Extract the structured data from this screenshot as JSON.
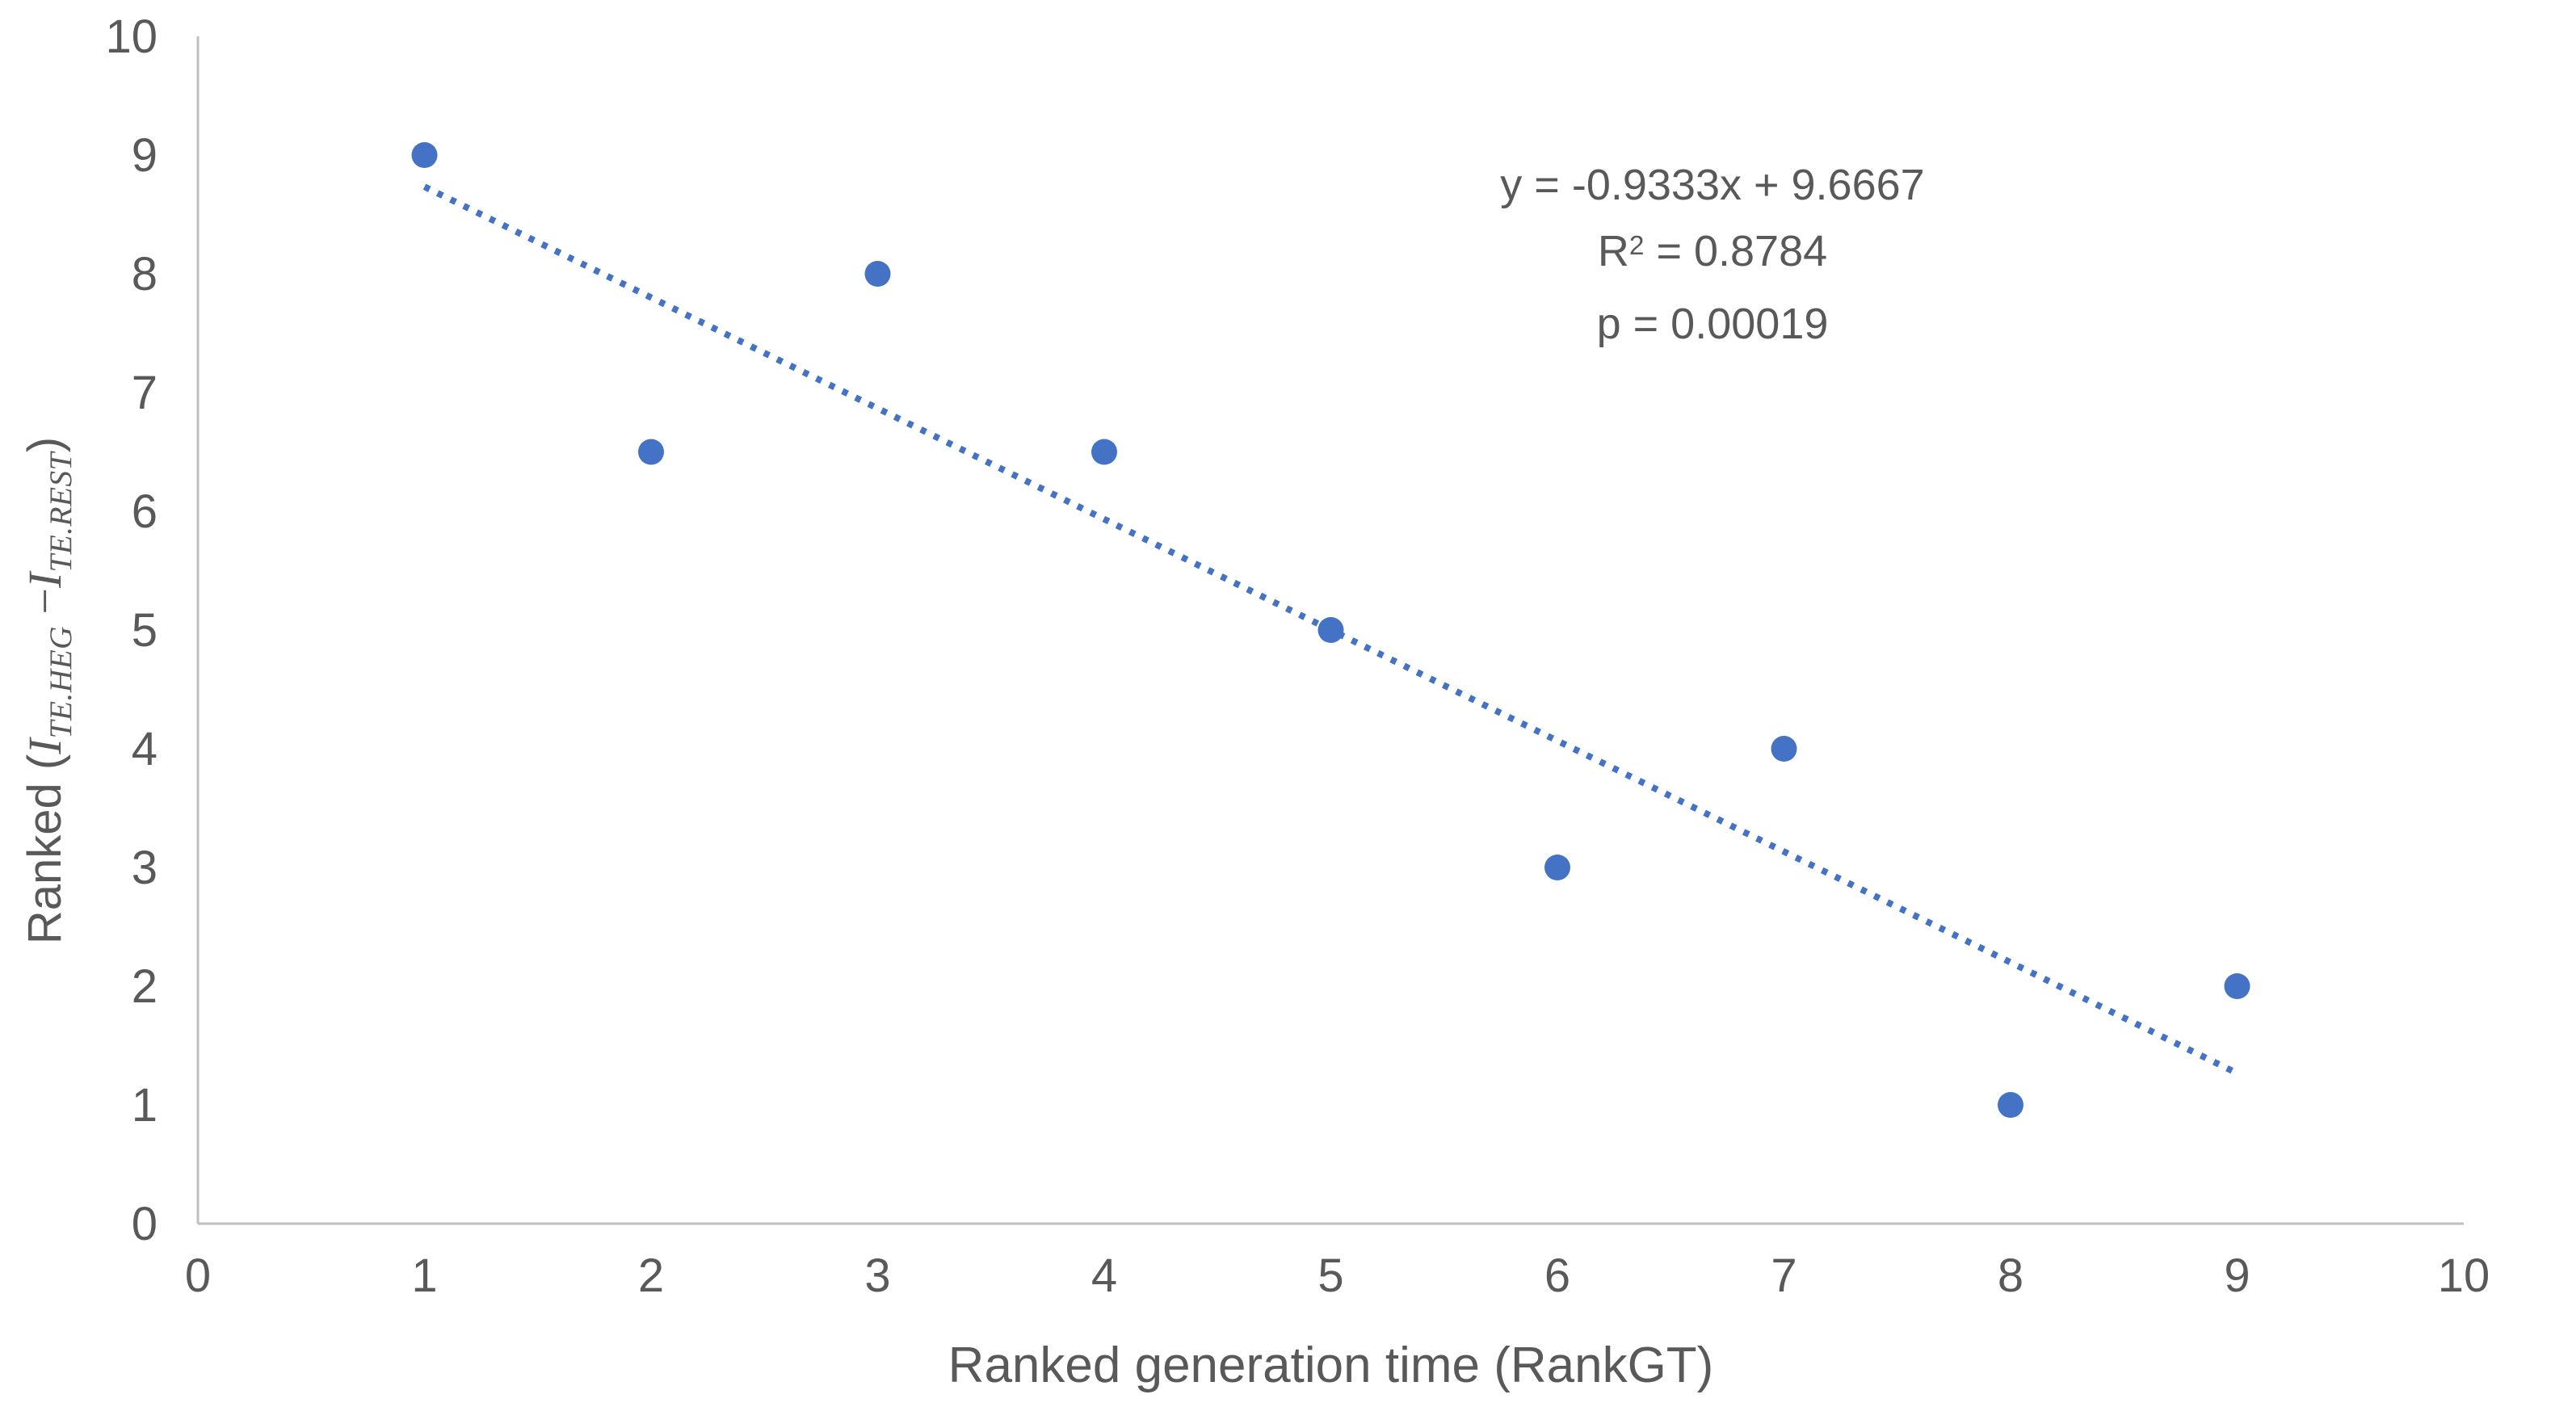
{
  "chart_data": {
    "type": "scatter",
    "title": "",
    "xlabel": "Ranked generation time (RankGT)",
    "ylabel_parts": [
      {
        "text": "Ranked (",
        "style": "sans"
      },
      {
        "text": "I",
        "style": "serif-italic"
      },
      {
        "text": "TE.HEG",
        "style": "serif-italic-sub"
      },
      {
        "text": " −",
        "style": "serif"
      },
      {
        "text": "I",
        "style": "serif-italic"
      },
      {
        "text": "TE.REST",
        "style": "serif-italic-sub"
      },
      {
        "text": ")",
        "style": "sans"
      }
    ],
    "xlim": [
      0,
      10
    ],
    "ylim": [
      0,
      10
    ],
    "xticks": [
      0,
      1,
      2,
      3,
      4,
      5,
      6,
      7,
      8,
      9,
      10
    ],
    "yticks": [
      0,
      1,
      2,
      3,
      4,
      5,
      6,
      7,
      8,
      9,
      10
    ],
    "points": [
      {
        "x": 1,
        "y": 9
      },
      {
        "x": 2,
        "y": 6.5
      },
      {
        "x": 3,
        "y": 8
      },
      {
        "x": 4,
        "y": 6.5
      },
      {
        "x": 5,
        "y": 5
      },
      {
        "x": 6,
        "y": 3
      },
      {
        "x": 7,
        "y": 4
      },
      {
        "x": 8,
        "y": 1
      },
      {
        "x": 9,
        "y": 2
      }
    ],
    "trendline": {
      "slope": -0.9333,
      "intercept": 9.6667,
      "x_start": 1,
      "x_end": 9,
      "style": "dotted"
    },
    "annotation_lines": [
      {
        "parts": [
          {
            "text": "y = -0.9333x + 9.6667"
          }
        ]
      },
      {
        "parts": [
          {
            "text": "R"
          },
          {
            "text": "2",
            "sup": true
          },
          {
            "text": " = 0.8784"
          }
        ]
      },
      {
        "parts": [
          {
            "text": "p = 0.00019"
          }
        ]
      }
    ],
    "legend": null,
    "grid": false,
    "colors": {
      "marker": "#4472C4",
      "trendline": "#4472C4",
      "axis_line": "#BFBFBF",
      "text": "#595959"
    }
  }
}
